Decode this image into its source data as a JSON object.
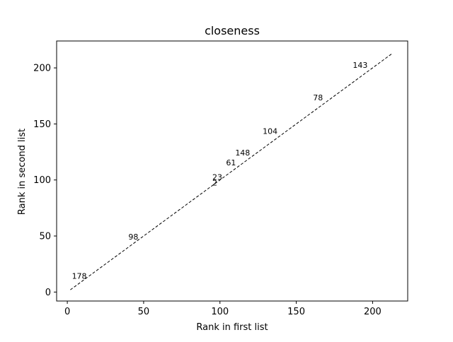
{
  "chart_data": {
    "type": "scatter",
    "title": "closeness",
    "xlabel": "Rank in first list",
    "ylabel": "Rank in second list",
    "xlim": [
      -7,
      223
    ],
    "ylim": [
      -8,
      224
    ],
    "xticks": [
      0,
      50,
      100,
      150,
      200
    ],
    "yticks": [
      0,
      50,
      100,
      150,
      200
    ],
    "grid": false,
    "reference_line": {
      "style": "dashed",
      "color": "#000000",
      "x": [
        2,
        213
      ],
      "y": [
        2,
        213
      ]
    },
    "points": [
      {
        "label": "178",
        "x": 3,
        "y": 12
      },
      {
        "label": "98",
        "x": 40,
        "y": 47
      },
      {
        "label": "2",
        "x": 95,
        "y": 95
      },
      {
        "label": "23",
        "x": 95,
        "y": 100
      },
      {
        "label": "61",
        "x": 104,
        "y": 113
      },
      {
        "label": "148",
        "x": 110,
        "y": 122
      },
      {
        "label": "104",
        "x": 128,
        "y": 141
      },
      {
        "label": "78",
        "x": 161,
        "y": 171
      },
      {
        "label": "143",
        "x": 187,
        "y": 200
      }
    ]
  }
}
